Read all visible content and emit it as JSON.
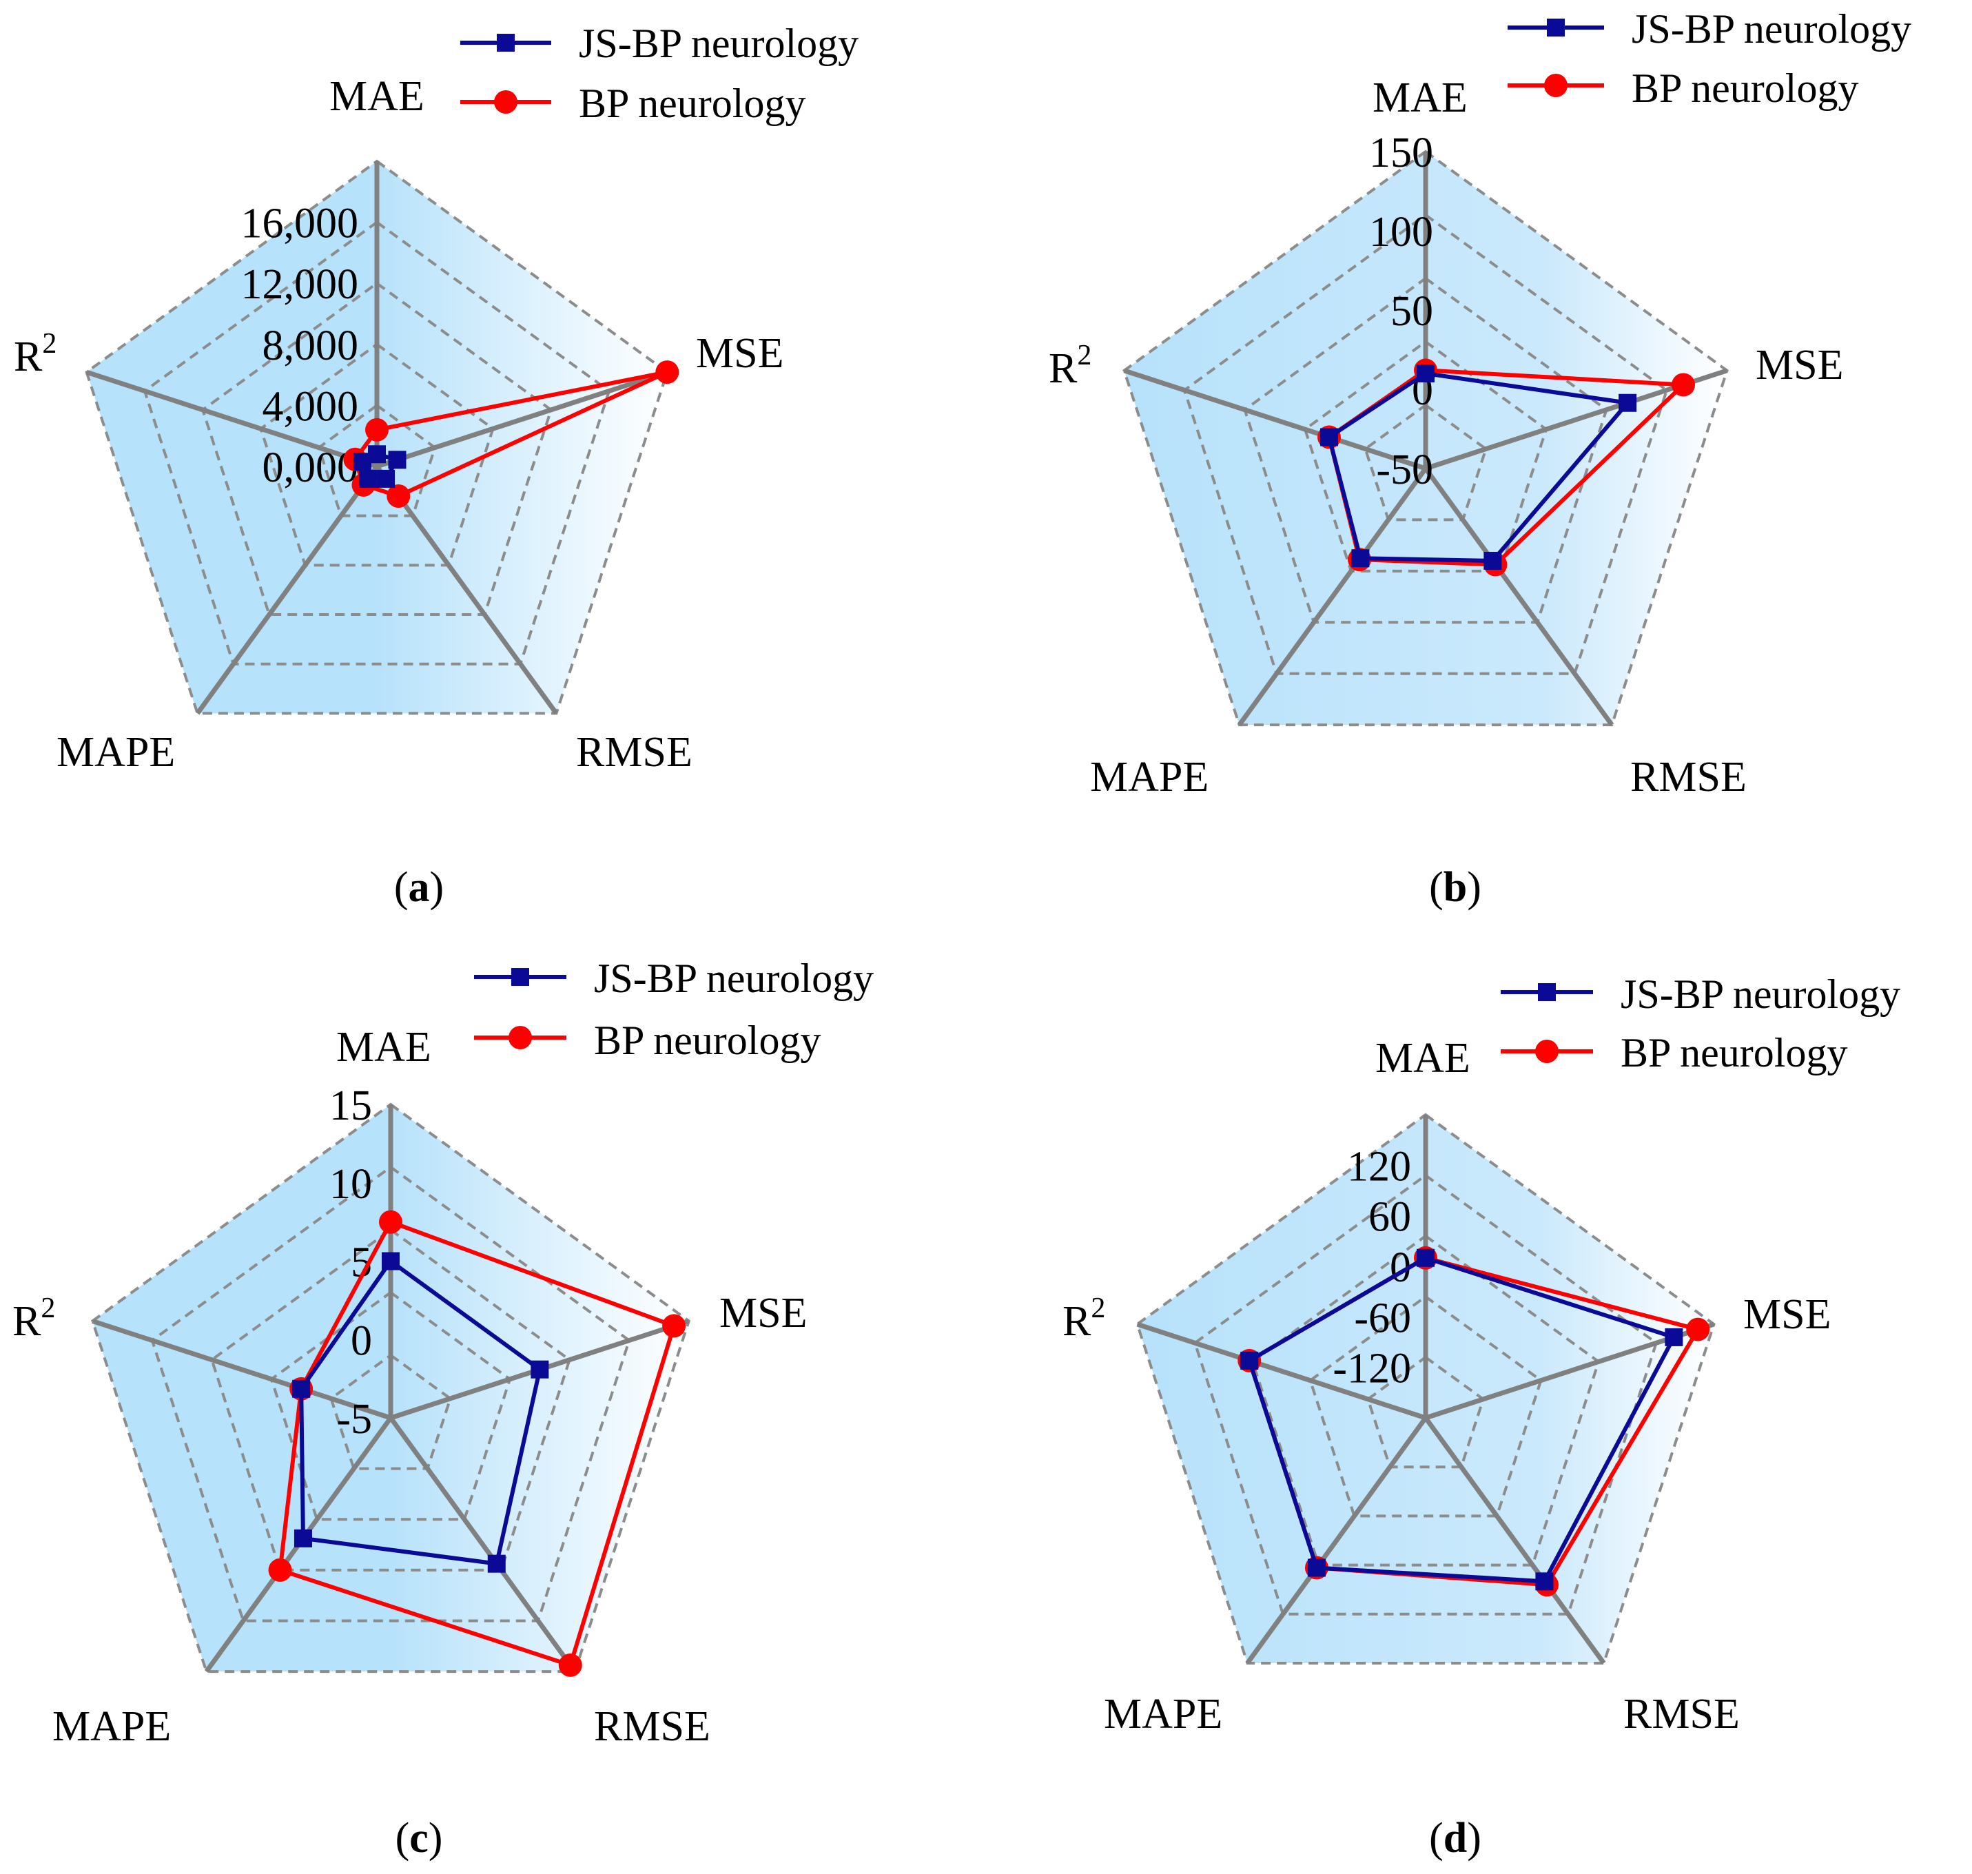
{
  "figure": {
    "legend_series": [
      "JS-BP neurology",
      "BP neurology"
    ],
    "axes": [
      "MAE",
      "MSE",
      "RMSE",
      "MAPE",
      "R2"
    ],
    "axis_display": {
      "R2_base": "R",
      "R2_sup": "2"
    }
  },
  "colors": {
    "js_bp": "#0a0a96",
    "bp": "#ff0000",
    "spoke": "#808080",
    "grid": "#8c8c8c",
    "fill_light": "#ffffff",
    "fill_dark": "#b7e2fb"
  },
  "chart_data": [
    {
      "id": "a",
      "type": "radar",
      "panel_label": "a",
      "axes": [
        "MAE",
        "MSE",
        "RMSE",
        "MAPE",
        "R2"
      ],
      "rlim": [
        0,
        20000
      ],
      "ticks": [
        0,
        4000,
        8000,
        12000,
        16000
      ],
      "tick_labels": [
        "0,000",
        "4,000",
        "8,000",
        "12,000",
        "16,000"
      ],
      "series": [
        {
          "name": "JS-BP neurology",
          "values": [
            800,
            1400,
            1000,
            1000,
            1000
          ]
        },
        {
          "name": "BP neurology",
          "values": [
            2400,
            20000,
            2400,
            1500,
            1500
          ]
        }
      ]
    },
    {
      "id": "b",
      "type": "radar",
      "panel_label": "b",
      "axes": [
        "MAE",
        "MSE",
        "RMSE",
        "MAPE",
        "R2"
      ],
      "rlim": [
        -50,
        150
      ],
      "ticks": [
        -50,
        0,
        50,
        100,
        150
      ],
      "tick_labels": [
        "-50",
        "0",
        "50",
        "100",
        "150"
      ],
      "series": [
        {
          "name": "JS-BP neurology",
          "values": [
            10,
            84,
            22,
            20,
            14
          ]
        },
        {
          "name": "BP neurology",
          "values": [
            12,
            121,
            25,
            21,
            14
          ]
        }
      ]
    },
    {
      "id": "c",
      "type": "radar",
      "panel_label": "c",
      "axes": [
        "MAE",
        "MSE",
        "RMSE",
        "MAPE",
        "R2"
      ],
      "rlim": [
        -5,
        15
      ],
      "ticks": [
        -5,
        0,
        5,
        10,
        15
      ],
      "tick_labels": [
        "-5",
        "0",
        "5",
        "10",
        "15"
      ],
      "series": [
        {
          "name": "JS-BP neurology",
          "values": [
            5,
            5,
            6.5,
            4.5,
            1
          ]
        },
        {
          "name": "BP neurology",
          "values": [
            7.5,
            14,
            14.5,
            7,
            1
          ]
        }
      ]
    },
    {
      "id": "d",
      "type": "radar",
      "panel_label": "d",
      "axes": [
        "MAE",
        "MSE",
        "RMSE",
        "MAPE",
        "R2"
      ],
      "rlim": [
        -180,
        180
      ],
      "ticks": [
        -120,
        -60,
        0,
        60,
        120
      ],
      "tick_labels": [
        "-120",
        "-60",
        "0",
        "60",
        "120"
      ],
      "series": [
        {
          "name": "JS-BP neurology",
          "values": [
            10,
            130,
            60,
            40,
            40
          ]
        },
        {
          "name": "BP neurology",
          "values": [
            10,
            160,
            65,
            40,
            40
          ]
        }
      ]
    }
  ]
}
